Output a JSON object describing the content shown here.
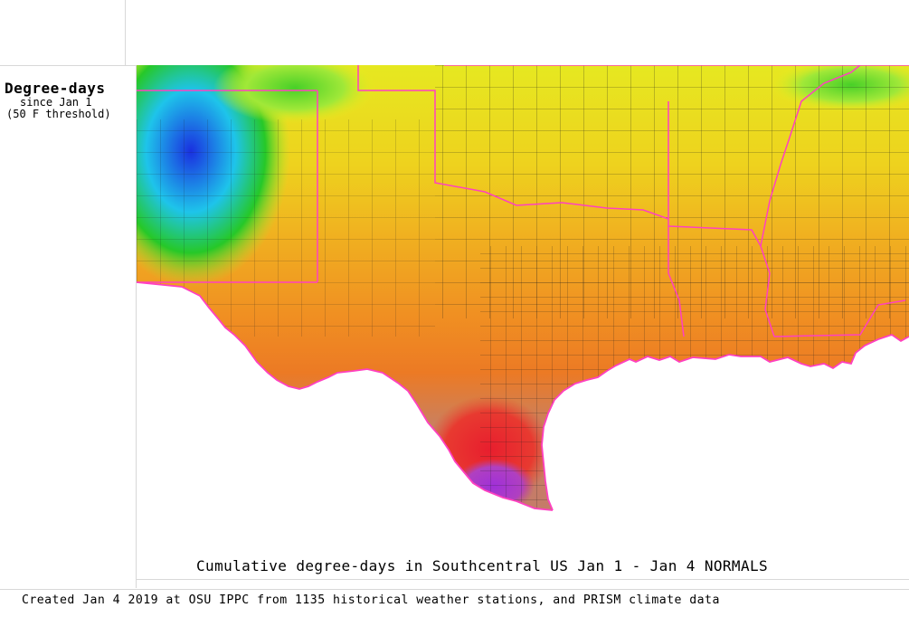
{
  "legend": {
    "title": "Degree-days",
    "subtitle_line1": "since Jan 1",
    "subtitle_line2": "(50 F threshold)"
  },
  "map": {
    "caption": "Cumulative degree-days in Southcentral US Jan 1 - Jan 4 NORMALS",
    "region": "Southcentral US",
    "color_scale": [
      "#2a3de0",
      "#19c8e8",
      "#28c828",
      "#a8f030",
      "#f0f020",
      "#f0c020",
      "#f0a020",
      "#f07820",
      "#c07868",
      "#e82030",
      "#a030d0"
    ],
    "boundary_colors": {
      "county": "#000000",
      "state": "#ff40c0"
    }
  },
  "footer": {
    "credit": "Created Jan 4 2019 at OSU IPPC from 1135 historical weather stations, and PRISM climate data"
  }
}
